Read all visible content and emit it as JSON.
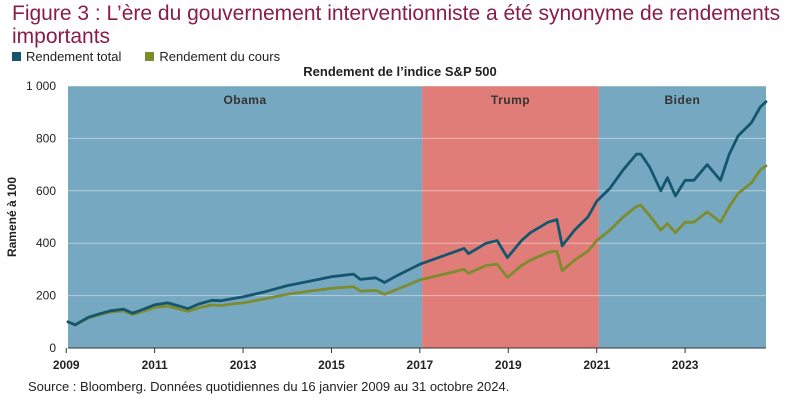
{
  "title": "Figure 3 : L’ère du gouvernement interventionniste a été synonyme de rendements importants",
  "legend": [
    {
      "label": "Rendement total",
      "color": "#14566e"
    },
    {
      "label": "Rendement du cours",
      "color": "#7d8c2e"
    }
  ],
  "source": "Source : Bloomberg. Données quotidiennes du 16 janvier 2009 au 31 octobre 2024.",
  "chart_data": {
    "type": "line",
    "title": "Rendement de l’indice S&P 500",
    "ylabel": "Ramené à 100",
    "xlabel": "",
    "ylim": [
      0,
      1000
    ],
    "xlim": [
      2009.04,
      2024.83
    ],
    "y_ticks": [
      0,
      200,
      400,
      600,
      800,
      1000
    ],
    "y_tick_labels": [
      "0",
      "200",
      "400",
      "600",
      "800",
      "1 000"
    ],
    "x_ticks": [
      2009,
      2011,
      2013,
      2015,
      2017,
      2019,
      2021,
      2023
    ],
    "x_tick_labels": [
      "2009",
      "2011",
      "2013",
      "2015",
      "2017",
      "2019",
      "2021",
      "2023"
    ],
    "grid": "horizontal",
    "regions": [
      {
        "label": "Obama",
        "start": 2009.04,
        "end": 2017.05,
        "color": "#77a8c2"
      },
      {
        "label": "Trump",
        "start": 2017.05,
        "end": 2021.05,
        "color": "#e17d78"
      },
      {
        "label": "Biden",
        "start": 2021.05,
        "end": 2024.83,
        "color": "#77a8c2"
      }
    ],
    "series": [
      {
        "name": "Rendement total",
        "color": "#14566e",
        "x": [
          2009.04,
          2009.2,
          2009.5,
          2009.75,
          2010.0,
          2010.3,
          2010.5,
          2010.75,
          2011.0,
          2011.3,
          2011.6,
          2011.75,
          2012.0,
          2012.3,
          2012.5,
          2012.75,
          2013.0,
          2013.5,
          2014.0,
          2014.5,
          2015.0,
          2015.5,
          2015.65,
          2016.0,
          2016.2,
          2016.5,
          2017.0,
          2017.5,
          2018.0,
          2018.1,
          2018.5,
          2018.75,
          2018.98,
          2019.3,
          2019.5,
          2019.9,
          2020.1,
          2020.22,
          2020.5,
          2020.8,
          2021.0,
          2021.3,
          2021.6,
          2021.9,
          2022.0,
          2022.2,
          2022.45,
          2022.6,
          2022.78,
          2023.0,
          2023.2,
          2023.5,
          2023.8,
          2024.0,
          2024.2,
          2024.5,
          2024.7,
          2024.83
        ],
        "y": [
          100,
          88,
          117,
          130,
          142,
          148,
          133,
          148,
          165,
          172,
          158,
          150,
          168,
          182,
          180,
          188,
          195,
          215,
          238,
          255,
          272,
          282,
          262,
          268,
          250,
          278,
          320,
          350,
          380,
          360,
          400,
          410,
          345,
          410,
          440,
          480,
          490,
          390,
          450,
          500,
          560,
          610,
          680,
          740,
          740,
          690,
          600,
          650,
          580,
          640,
          640,
          700,
          640,
          740,
          810,
          860,
          920,
          940
        ]
      },
      {
        "name": "Rendement du cours",
        "color": "#7d8c2e",
        "x": [
          2009.04,
          2009.2,
          2009.5,
          2009.75,
          2010.0,
          2010.3,
          2010.5,
          2010.75,
          2011.0,
          2011.3,
          2011.6,
          2011.75,
          2012.0,
          2012.3,
          2012.5,
          2012.75,
          2013.0,
          2013.5,
          2014.0,
          2014.5,
          2015.0,
          2015.5,
          2015.65,
          2016.0,
          2016.2,
          2016.5,
          2017.0,
          2017.5,
          2018.0,
          2018.1,
          2018.5,
          2018.75,
          2018.98,
          2019.3,
          2019.5,
          2019.9,
          2020.1,
          2020.22,
          2020.5,
          2020.8,
          2021.0,
          2021.3,
          2021.6,
          2021.9,
          2022.0,
          2022.2,
          2022.45,
          2022.6,
          2022.78,
          2023.0,
          2023.2,
          2023.5,
          2023.8,
          2024.0,
          2024.2,
          2024.5,
          2024.7,
          2024.83
        ],
        "y": [
          100,
          88,
          115,
          127,
          137,
          142,
          128,
          140,
          155,
          160,
          146,
          140,
          153,
          165,
          162,
          168,
          172,
          188,
          205,
          217,
          228,
          234,
          217,
          220,
          205,
          225,
          260,
          280,
          300,
          285,
          315,
          320,
          270,
          315,
          335,
          365,
          370,
          295,
          335,
          370,
          410,
          450,
          500,
          540,
          545,
          505,
          450,
          475,
          440,
          480,
          480,
          520,
          480,
          540,
          590,
          630,
          680,
          695
        ]
      }
    ]
  }
}
